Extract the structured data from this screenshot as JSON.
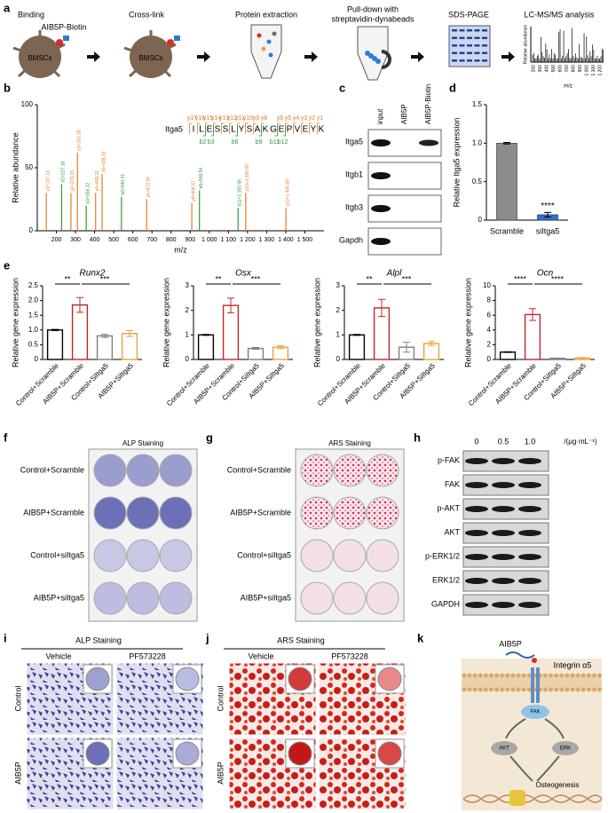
{
  "panel_labels": [
    "a",
    "b",
    "c",
    "d",
    "e",
    "f",
    "g",
    "h",
    "i",
    "j",
    "k"
  ],
  "workflow": {
    "steps": [
      "Binding",
      "Cross-link",
      "Protein extraction"
    ],
    "pulldown": [
      "Pull-down with",
      "streptavidin-dynabeads"
    ],
    "sds": "SDS-PAGE",
    "lcms": "LC-MS/MS analysis",
    "probe": "AIB5P-Biotin",
    "cells": [
      "BMSCs",
      "BMSCs"
    ],
    "mini_ylabel": "Relative abundance",
    "mini_xticks": [
      "200",
      "300",
      "400",
      "500",
      "600",
      "700",
      "800",
      "900",
      "1 000",
      "1 100",
      "1 200"
    ],
    "mini_xlabel": "m/z"
  },
  "chart_data": [
    {
      "type": "stem",
      "xlabel": "m/z",
      "ylabel": "Relative abundance",
      "xlim": [
        100,
        1600
      ],
      "ylim": [
        0,
        100
      ],
      "yticks": [
        0,
        50,
        100
      ],
      "xticks": [
        200,
        300,
        400,
        500,
        600,
        700,
        800,
        900,
        {
          "value": 1000,
          "label": "1 000"
        },
        {
          "value": 1100,
          "label": "1 100"
        },
        {
          "value": 1200,
          "label": "1 200"
        },
        {
          "value": 1300,
          "label": "1 300"
        },
        {
          "value": 1400,
          "label": "1 400"
        },
        {
          "value": 1500,
          "label": "1 500"
        }
      ],
      "protein": "Itga5",
      "sequence": [
        "I",
        "L",
        "E",
        "S",
        "S",
        "L",
        "Y",
        "S",
        "A",
        "K",
        "G",
        "E",
        "P",
        "V",
        "E",
        "Y",
        "K"
      ],
      "y_ions": [
        "y17",
        "y16",
        "y15",
        "y14",
        "y13",
        "y12",
        "y11",
        "y10",
        "y9",
        "y8",
        "y6",
        "y5",
        "y4",
        "y3",
        "y2",
        "y1"
      ],
      "b_ions": [
        "b2",
        "b3",
        "b6",
        "b9",
        "b11",
        "b12"
      ],
      "x": [
        147.11,
        227.18,
        276.15,
        310.18,
        356.22,
        405.21,
        439.33,
        540.31,
        672.35,
        908.47,
        948.54,
        1150.58,
        1190.6,
        1400.68
      ],
      "values": [
        30,
        37,
        30,
        62,
        20,
        30,
        45,
        27,
        25,
        22,
        32,
        18,
        30,
        18
      ],
      "peak_labels": [
        "y1+147.11",
        "b2+227.18",
        "y2+276.15",
        "y3+310.18",
        "b3+356.22",
        "y4+405.21",
        "y5+439.33",
        "b6+540.31",
        "y6+672.35",
        "y8+908.47",
        "b9+948.54",
        "b11+1 150.58",
        "y10+1 190.60",
        "y13+1 400.68"
      ],
      "colors": [
        "#e07b2a",
        "#2e9a3a",
        "#e07b2a",
        "#e07b2a",
        "#2e9a3a",
        "#e07b2a",
        "#e07b2a",
        "#2e9a3a",
        "#e07b2a",
        "#e07b2a",
        "#2e9a3a",
        "#2e9a3a",
        "#e07b2a",
        "#e07b2a"
      ]
    },
    {
      "type": "bar",
      "filled": true,
      "ylabel": "Relative Itga5 expression",
      "categories": [
        "Scramble",
        "siItga5"
      ],
      "values": [
        1.0,
        0.07
      ],
      "errors": [
        0.01,
        0.03
      ],
      "colors": [
        "#8c8c8c",
        "#2f6fd0"
      ],
      "ylim": [
        0,
        1.5
      ],
      "yticks": [
        0,
        0.5,
        {
          "value": 1,
          "label": "1.0"
        },
        1.5
      ],
      "significance": [
        "****"
      ]
    },
    {
      "type": "bar",
      "filled": false,
      "title": "Runx2",
      "ylabel": "Relative gene expression",
      "categories": [
        "Control+Scramble",
        "AIB5P+Scramble",
        "Control+SiItga5",
        "AIB5P+SiItga5"
      ],
      "values": [
        1.0,
        1.85,
        0.8,
        0.88
      ],
      "errors": [
        0.02,
        0.25,
        0.05,
        0.1
      ],
      "colors": [
        "#000000",
        "#c0262d",
        "#808080",
        "#e8a33a"
      ],
      "ylim": [
        0,
        2.5
      ],
      "yticks": [
        0,
        0.5,
        {
          "value": 1,
          "label": "1.0"
        },
        1.5,
        {
          "value": 2,
          "label": "2.0"
        },
        2.5
      ],
      "significance": [
        "**",
        "***"
      ]
    },
    {
      "type": "bar",
      "filled": false,
      "title": "Osx",
      "ylabel": "Relative gene expression",
      "categories": [
        "Control+Scramble",
        "AIB5P+Scramble",
        "Control+SiItga5",
        "AIB5P+SiItga5"
      ],
      "values": [
        1.0,
        2.2,
        0.45,
        0.5
      ],
      "errors": [
        0.02,
        0.3,
        0.04,
        0.06
      ],
      "colors": [
        "#000000",
        "#c0262d",
        "#808080",
        "#e8a33a"
      ],
      "ylim": [
        0,
        3
      ],
      "yticks": [
        0,
        1,
        2,
        3
      ],
      "significance": [
        "**",
        "***"
      ]
    },
    {
      "type": "bar",
      "filled": false,
      "title": "Alpl",
      "ylabel": "Relative gene expression",
      "categories": [
        "Control+Scramble",
        "AIB5P+Scramble",
        "Control+SiItga5",
        "AIB5P+SiItga5"
      ],
      "values": [
        1.0,
        2.1,
        0.5,
        0.65
      ],
      "errors": [
        0.02,
        0.35,
        0.2,
        0.08
      ],
      "colors": [
        "#000000",
        "#c0262d",
        "#808080",
        "#e8a33a"
      ],
      "ylim": [
        0,
        3
      ],
      "yticks": [
        0,
        1,
        2,
        3
      ],
      "significance": [
        "**",
        "***"
      ]
    },
    {
      "type": "bar",
      "filled": false,
      "title": "Ocn",
      "ylabel": "Relative gene expression",
      "categories": [
        "Control+Scramble",
        "AIB5P+Scramble",
        "Control+SiItga5",
        "AIB5P+SiItga5"
      ],
      "values": [
        1.0,
        6.1,
        0.15,
        0.2
      ],
      "errors": [
        0.05,
        0.8,
        0.05,
        0.05
      ],
      "colors": [
        "#000000",
        "#c0262d",
        "#808080",
        "#e8a33a"
      ],
      "ylim": [
        0,
        10
      ],
      "yticks": [
        0,
        2,
        4,
        6,
        8,
        10
      ],
      "significance": [
        "****",
        "****"
      ]
    }
  ],
  "blot_c": {
    "columns": [
      "input",
      "AIB5P",
      "AIB5P-Biotin"
    ],
    "rows": [
      "Itga5",
      "Itgb1",
      "Itgb3",
      "Gapdh"
    ]
  },
  "staining_f": {
    "title": "ALP Staining",
    "rows": [
      "Control+Scramble",
      "AIB5P+Scramble",
      "Control+siItga5",
      "AIB5P+siItga5"
    ]
  },
  "staining_g": {
    "title": "ARS Staining",
    "rows": [
      "Control+Scramble",
      "AIB5P+Scramble",
      "Control+siItga5",
      "AIB5P+siItga5"
    ]
  },
  "blot_h": {
    "columns": [
      "0",
      "0.5",
      "1.0"
    ],
    "unit": "/(μg·mL⁻¹)",
    "rows": [
      "p-FAK",
      "FAK",
      "p-AKT",
      "AKT",
      "p-ERK1/2",
      "ERK1/2",
      "GAPDH"
    ]
  },
  "micro_i": {
    "title": "ALP Staining",
    "columns": [
      "Vehicle",
      "PF573228"
    ],
    "rows": [
      "Control",
      "AIB5P"
    ]
  },
  "micro_j": {
    "title": "ARS Staining",
    "columns": [
      "Vehicle",
      "PF573228"
    ],
    "rows": [
      "Control",
      "AIB5P"
    ]
  },
  "pathway_k": {
    "ligand": "AIB5P",
    "receptor": "Integrin α5",
    "kinases": [
      "FAK",
      "AKT",
      "ERK"
    ],
    "outcome": "Osteogenesis"
  }
}
